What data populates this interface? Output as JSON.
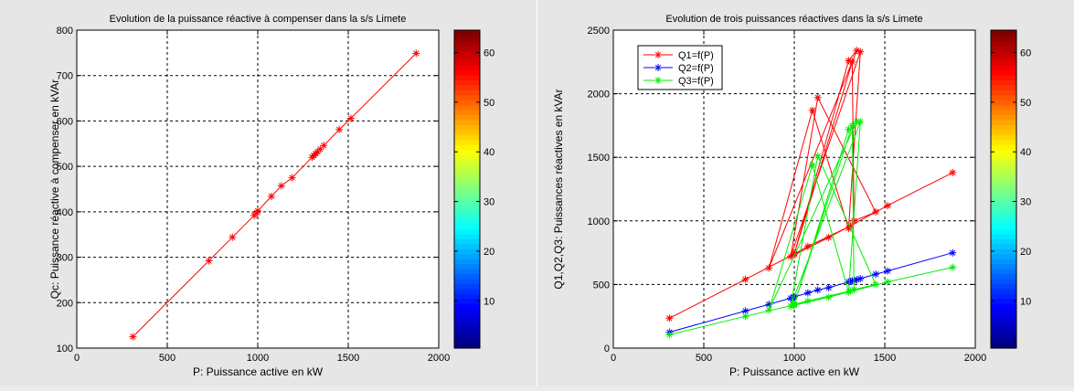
{
  "chart_data": [
    {
      "type": "line",
      "title": "Evolution de la puissance réactive à compenser dans la s/s Limete",
      "xlabel": "P: Puissance active en kW",
      "ylabel": "Qc: Puissance réactive à compenser en kVAr",
      "xlim": [
        0,
        2000
      ],
      "ylim": [
        100,
        800
      ],
      "xticks": [
        "0",
        "500",
        "1000",
        "1500",
        "2000"
      ],
      "yticks": [
        "100",
        "200",
        "300",
        "400",
        "500",
        "600",
        "700",
        "800"
      ],
      "grid": true,
      "series": [
        {
          "color": "#ff0000",
          "marker": "*",
          "x": [
            310,
            730,
            860,
            980,
            995,
            1000,
            1075,
            1130,
            1190,
            1300,
            1310,
            1320,
            1330,
            1345,
            1365,
            1450,
            1515,
            1875
          ],
          "y": [
            125,
            292,
            344,
            392,
            398,
            402,
            434,
            457,
            475,
            520,
            524,
            528,
            532,
            538,
            546,
            581,
            606,
            749
          ]
        }
      ],
      "colorbar": {
        "min": 1,
        "max": 64,
        "ticks": [
          "10",
          "20",
          "30",
          "40",
          "50",
          "60"
        ]
      }
    },
    {
      "type": "line",
      "title": "Evolution de trois puissances réactives dans la s/s Limete",
      "xlabel": "P: Puissance active en kW",
      "ylabel": "Q1,Q2,Q3: Puissances réactives en kVAr",
      "xlim": [
        0,
        2000
      ],
      "ylim": [
        0,
        2500
      ],
      "xticks": [
        "0",
        "500",
        "1000",
        "1500",
        "2000"
      ],
      "yticks": [
        "0",
        "500",
        "1000",
        "1500",
        "2000",
        "2500"
      ],
      "grid": true,
      "legend_position": "top-left",
      "series": [
        {
          "name": "Q1=f(P)",
          "color": "#ff0000",
          "marker": "*",
          "x": [
            310,
            730,
            1000,
            1300,
            1345,
            860,
            1100,
            1300,
            1365,
            980,
            1130,
            1450,
            1330,
            1320,
            1000,
            1075,
            1310,
            995,
            1190,
            1515,
            1875
          ],
          "y": [
            235,
            540,
            740,
            2260,
            2340,
            630,
            1870,
            940,
            2330,
            720,
            1970,
            1070,
            1000,
            2250,
            740,
            800,
            960,
            730,
            870,
            1120,
            1380
          ]
        },
        {
          "name": "Q2=f(P)",
          "color": "#0000ff",
          "marker": "*",
          "x": [
            310,
            730,
            860,
            980,
            995,
            1000,
            1075,
            1130,
            1190,
            1300,
            1310,
            1320,
            1330,
            1345,
            1365,
            1450,
            1515,
            1875
          ],
          "y": [
            125,
            292,
            344,
            392,
            398,
            402,
            434,
            457,
            475,
            520,
            524,
            528,
            532,
            538,
            546,
            581,
            606,
            749
          ]
        },
        {
          "name": "Q3=f(P)",
          "color": "#00ee00",
          "marker": "*",
          "x": [
            310,
            730,
            1000,
            1300,
            1345,
            860,
            1100,
            1300,
            1365,
            980,
            1130,
            1450,
            1330,
            1320,
            1000,
            1075,
            1310,
            995,
            1190,
            1515,
            1875
          ],
          "y": [
            105,
            250,
            340,
            1720,
            1780,
            300,
            1440,
            440,
            1780,
            330,
            1510,
            500,
            460,
            1750,
            345,
            370,
            450,
            335,
            400,
            520,
            635
          ]
        }
      ],
      "colorbar": {
        "min": 1,
        "max": 64,
        "ticks": [
          "10",
          "20",
          "30",
          "40",
          "50",
          "60"
        ]
      }
    }
  ]
}
